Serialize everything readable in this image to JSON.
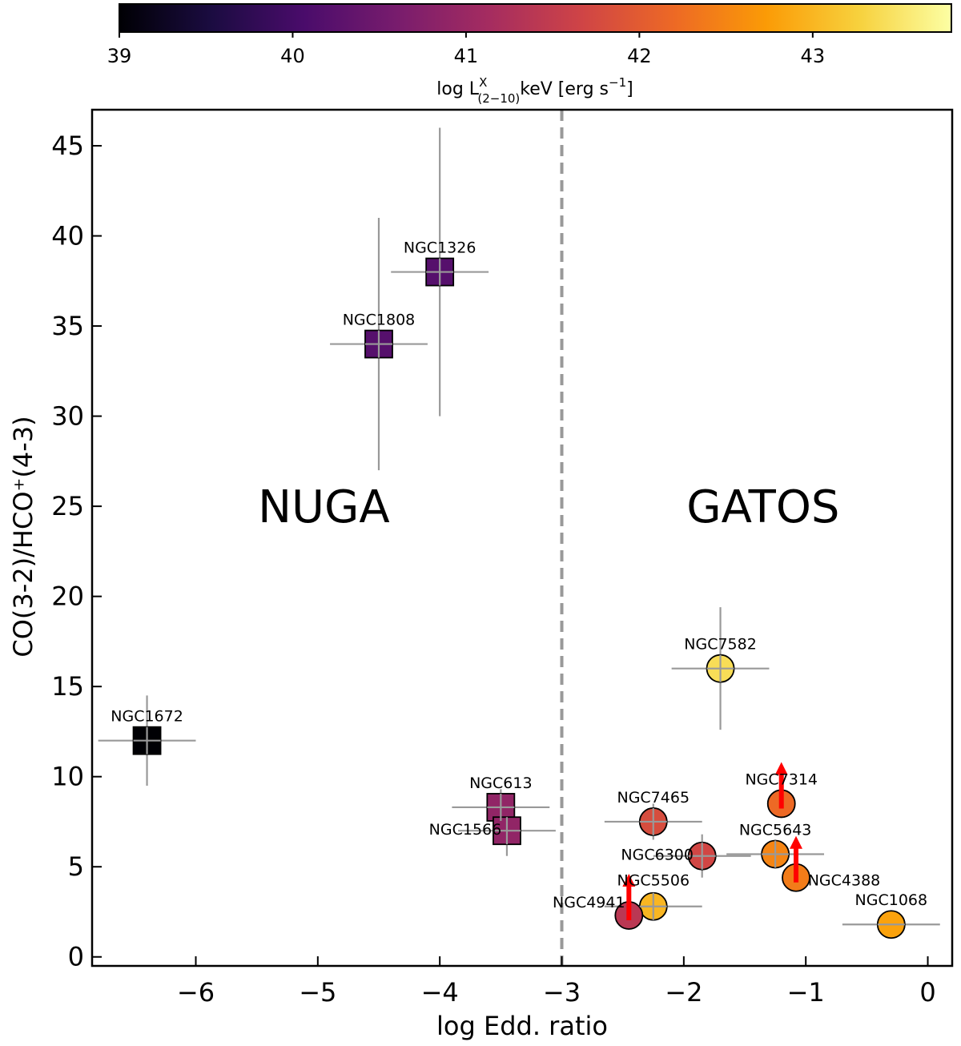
{
  "chart_data": {
    "type": "scatter",
    "xlabel": "log Edd. ratio",
    "ylabel": "CO(3-2)/HCO⁺(4-3)",
    "xlim": [
      -6.85,
      0.2
    ],
    "ylim": [
      -0.5,
      47
    ],
    "xticks": [
      -6,
      -5,
      -4,
      -3,
      -2,
      -1,
      0
    ],
    "xtick_labels": [
      "−6",
      "−5",
      "−4",
      "−3",
      "−2",
      "−1",
      "0"
    ],
    "yticks": [
      0,
      5,
      10,
      15,
      20,
      25,
      30,
      35,
      40,
      45
    ],
    "ytick_labels": [
      "0",
      "5",
      "10",
      "15",
      "20",
      "25",
      "30",
      "35",
      "40",
      "45"
    ],
    "divider_x": -3,
    "groups": [
      {
        "label": "NUGA",
        "color": "#0b0b7a",
        "x": -4.95,
        "y": 25
      },
      {
        "label": "GATOS",
        "color": "#f9a11b",
        "x": -1.35,
        "y": 25
      }
    ],
    "colorbar": {
      "label": "log L",
      "label_sup": "X",
      "label_sub": "(2−10)",
      "label_tail": "keV [erg s",
      "label_tail_sup": "−1",
      "label_close": "]",
      "range": [
        39,
        43.8
      ],
      "ticks": [
        39,
        40,
        41,
        42,
        43
      ],
      "tick_labels": [
        "39",
        "40",
        "41",
        "42",
        "43"
      ],
      "colors": [
        "#000004",
        "#1b0c41",
        "#4a0c6b",
        "#781c6d",
        "#a52c60",
        "#cf4446",
        "#ed6925",
        "#fb9b06",
        "#f7d13d",
        "#fcffa4"
      ]
    },
    "points": [
      {
        "name": "NGC1326",
        "x": -4.0,
        "y": 38,
        "xerr": [
          0.4,
          0.4
        ],
        "yerr": [
          8,
          8
        ],
        "logLx": 40.2,
        "marker": "square",
        "lower_limit": false
      },
      {
        "name": "NGC1808",
        "x": -4.5,
        "y": 34,
        "xerr": [
          0.4,
          0.4
        ],
        "yerr": [
          7,
          7
        ],
        "logLx": 40.2,
        "marker": "square",
        "lower_limit": false
      },
      {
        "name": "NGC1672",
        "x": -6.4,
        "y": 12,
        "xerr": [
          0.4,
          0.4
        ],
        "yerr": [
          2.5,
          2.5
        ],
        "logLx": 39.0,
        "marker": "square",
        "lower_limit": false
      },
      {
        "name": "NGC613",
        "x": -3.5,
        "y": 8.3,
        "xerr": [
          0.4,
          0.4
        ],
        "yerr": [
          1.0,
          1.0
        ],
        "logLx": 40.9,
        "marker": "square",
        "lower_limit": false
      },
      {
        "name": "NGC1566",
        "x": -3.45,
        "y": 7.0,
        "xerr": [
          0.4,
          0.4
        ],
        "yerr": [
          1.4,
          1.4
        ],
        "logLx": 40.9,
        "marker": "square",
        "lower_limit": false
      },
      {
        "name": "NGC7582",
        "x": -1.7,
        "y": 16,
        "xerr": [
          0.4,
          0.4
        ],
        "yerr": [
          3.4,
          3.4
        ],
        "logLx": 43.4,
        "marker": "circle",
        "lower_limit": false
      },
      {
        "name": "NGC7314",
        "x": -1.2,
        "y": 8.5,
        "xerr": [
          0,
          0
        ],
        "yerr": [
          0,
          0
        ],
        "logLx": 42.2,
        "marker": "circle",
        "lower_limit": true
      },
      {
        "name": "NGC7465",
        "x": -2.25,
        "y": 7.5,
        "xerr": [
          0.4,
          0.4
        ],
        "yerr": [
          1.0,
          1.0
        ],
        "logLx": 41.8,
        "marker": "circle",
        "lower_limit": false
      },
      {
        "name": "NGC5643",
        "x": -1.25,
        "y": 5.7,
        "xerr": [
          0.4,
          0.4
        ],
        "yerr": [
          0.8,
          0.8
        ],
        "logLx": 42.5,
        "marker": "circle",
        "lower_limit": false
      },
      {
        "name": "NGC6300",
        "x": -1.85,
        "y": 5.6,
        "xerr": [
          0.4,
          0.4
        ],
        "yerr": [
          1.2,
          1.2
        ],
        "logLx": 41.7,
        "marker": "circle",
        "lower_limit": false
      },
      {
        "name": "NGC4388",
        "x": -1.08,
        "y": 4.4,
        "xerr": [
          0,
          0
        ],
        "yerr": [
          0,
          0
        ],
        "logLx": 42.4,
        "marker": "circle",
        "lower_limit": true
      },
      {
        "name": "NGC5506",
        "x": -2.25,
        "y": 2.8,
        "xerr": [
          0.4,
          0.4
        ],
        "yerr": [
          0.5,
          0.5
        ],
        "logLx": 43.0,
        "marker": "circle",
        "lower_limit": false
      },
      {
        "name": "NGC4941",
        "x": -2.45,
        "y": 2.3,
        "xerr": [
          0,
          0
        ],
        "yerr": [
          0,
          0
        ],
        "logLx": 41.4,
        "marker": "circle",
        "lower_limit": true
      },
      {
        "name": "NGC1068",
        "x": -0.3,
        "y": 1.8,
        "xerr": [
          0.4,
          0.4
        ],
        "yerr": [
          0,
          0
        ],
        "logLx": 42.8,
        "marker": "circle",
        "lower_limit": false
      }
    ]
  }
}
